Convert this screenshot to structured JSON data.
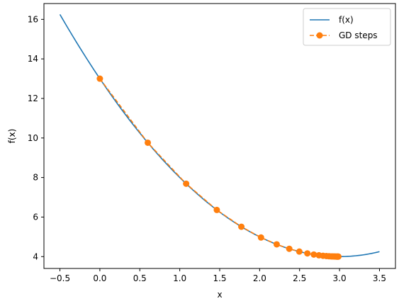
{
  "chart_data": {
    "type": "line",
    "xlabel": "x",
    "ylabel": "f(x)",
    "xlim": [
      -0.7,
      3.7
    ],
    "ylim": [
      3.4,
      16.8
    ],
    "xticks": [
      -0.5,
      0.0,
      0.5,
      1.0,
      1.5,
      2.0,
      2.5,
      3.0,
      3.5
    ],
    "xtick_labels": [
      "−0.5",
      "0.0",
      "0.5",
      "1.0",
      "1.5",
      "2.0",
      "2.5",
      "3.0",
      "3.5"
    ],
    "yticks": [
      4,
      6,
      8,
      10,
      12,
      14,
      16
    ],
    "ytick_labels": [
      "4",
      "6",
      "8",
      "10",
      "12",
      "14",
      "16"
    ],
    "grid": false,
    "legend_position": "top-right",
    "series": [
      {
        "name": "f(x)",
        "style": "solid-line",
        "color": "#1f77b4",
        "x": [
          -0.5,
          -0.25,
          0.0,
          0.25,
          0.5,
          0.75,
          1.0,
          1.25,
          1.5,
          1.75,
          2.0,
          2.25,
          2.5,
          2.75,
          3.0,
          3.25,
          3.5
        ],
        "y": [
          16.25,
          14.5625,
          13.0,
          11.5625,
          10.25,
          9.0625,
          8.0,
          7.0625,
          6.25,
          5.5625,
          5.0,
          4.5625,
          4.25,
          4.0625,
          4.0,
          4.0625,
          4.25
        ]
      },
      {
        "name": "GD steps",
        "style": "dashed-line-with-circles",
        "color": "#ff7f0e",
        "x": [
          0.0,
          0.6,
          1.08,
          1.464,
          1.7712,
          2.017,
          2.2136,
          2.3709,
          2.4967,
          2.5973,
          2.6779,
          2.7423,
          2.7938,
          2.8351,
          2.8681,
          2.8944,
          2.9156,
          2.9324,
          2.946,
          2.9568,
          2.9654,
          2.9723,
          2.9779,
          2.9823,
          2.9858
        ],
        "y": [
          13.0,
          9.76,
          7.6864,
          6.3593,
          5.5099,
          4.9663,
          4.6184,
          4.3958,
          4.2533,
          4.1621,
          4.1037,
          4.0664,
          4.0425,
          4.0272,
          4.0174,
          4.0111,
          4.0071,
          4.0046,
          4.0029,
          4.0019,
          4.0012,
          4.0008,
          4.0005,
          4.0003,
          4.0002
        ]
      }
    ]
  }
}
